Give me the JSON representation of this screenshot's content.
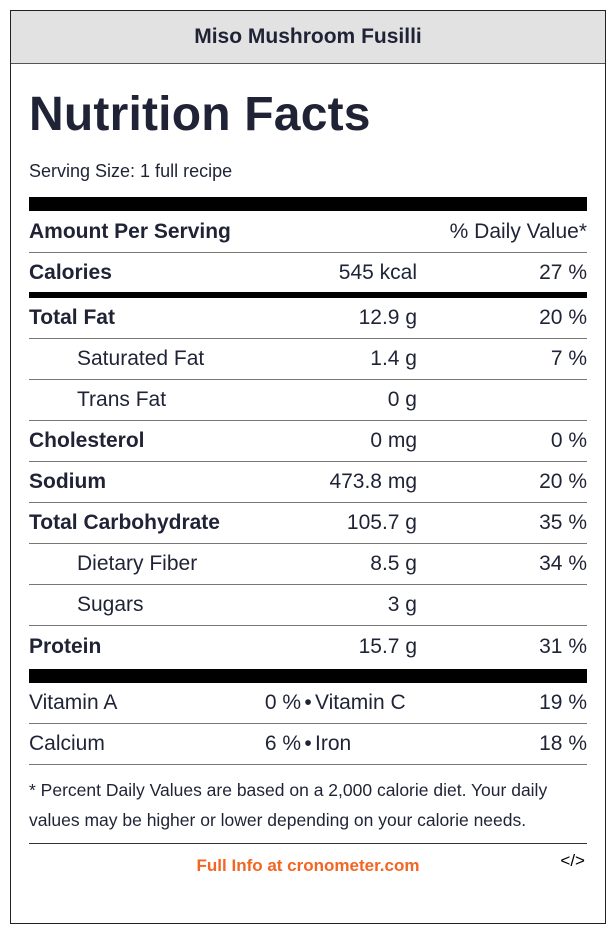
{
  "recipe_title": "Miso Mushroom Fusilli",
  "heading": "Nutrition Facts",
  "serving_size": "Serving Size: 1 full recipe",
  "header": {
    "amount_per_serving": "Amount Per Serving",
    "daily_value": "% Daily Value*"
  },
  "calories": {
    "name": "Calories",
    "amount": "545 kcal",
    "dv": "27 %"
  },
  "nutrients": [
    {
      "name": "Total Fat",
      "amount": "12.9 g",
      "dv": "20 %"
    },
    {
      "name": "Saturated Fat",
      "amount": "1.4 g",
      "dv": "7 %"
    },
    {
      "name": "Trans Fat",
      "amount": "0 g",
      "dv": ""
    },
    {
      "name": "Cholesterol",
      "amount": "0 mg",
      "dv": "0 %"
    },
    {
      "name": "Sodium",
      "amount": "473.8 mg",
      "dv": "20 %"
    },
    {
      "name": "Total Carbohydrate",
      "amount": "105.7 g",
      "dv": "35 %"
    },
    {
      "name": "Dietary Fiber",
      "amount": "8.5 g",
      "dv": "34 %"
    },
    {
      "name": "Sugars",
      "amount": "3 g",
      "dv": ""
    },
    {
      "name": "Protein",
      "amount": "15.7 g",
      "dv": "31 %"
    }
  ],
  "vitamins": [
    {
      "name1": "Vitamin A",
      "pct1": "0 %",
      "name2": "Vitamin C",
      "pct2": "19 %"
    },
    {
      "name1": "Calcium",
      "pct1": "6 %",
      "name2": "Iron",
      "pct2": "18 %"
    }
  ],
  "separator": "•",
  "footnote": "* Percent Daily Values are based on a 2,000 calorie diet. Your daily values may be higher or lower depending on your calorie needs.",
  "footer": {
    "link_text": "Full Info at cronometer.com",
    "embed_label": "</>"
  },
  "colors": {
    "link": "#f26522",
    "title_bar": "#e2e2e2",
    "text": "#1f2335"
  }
}
